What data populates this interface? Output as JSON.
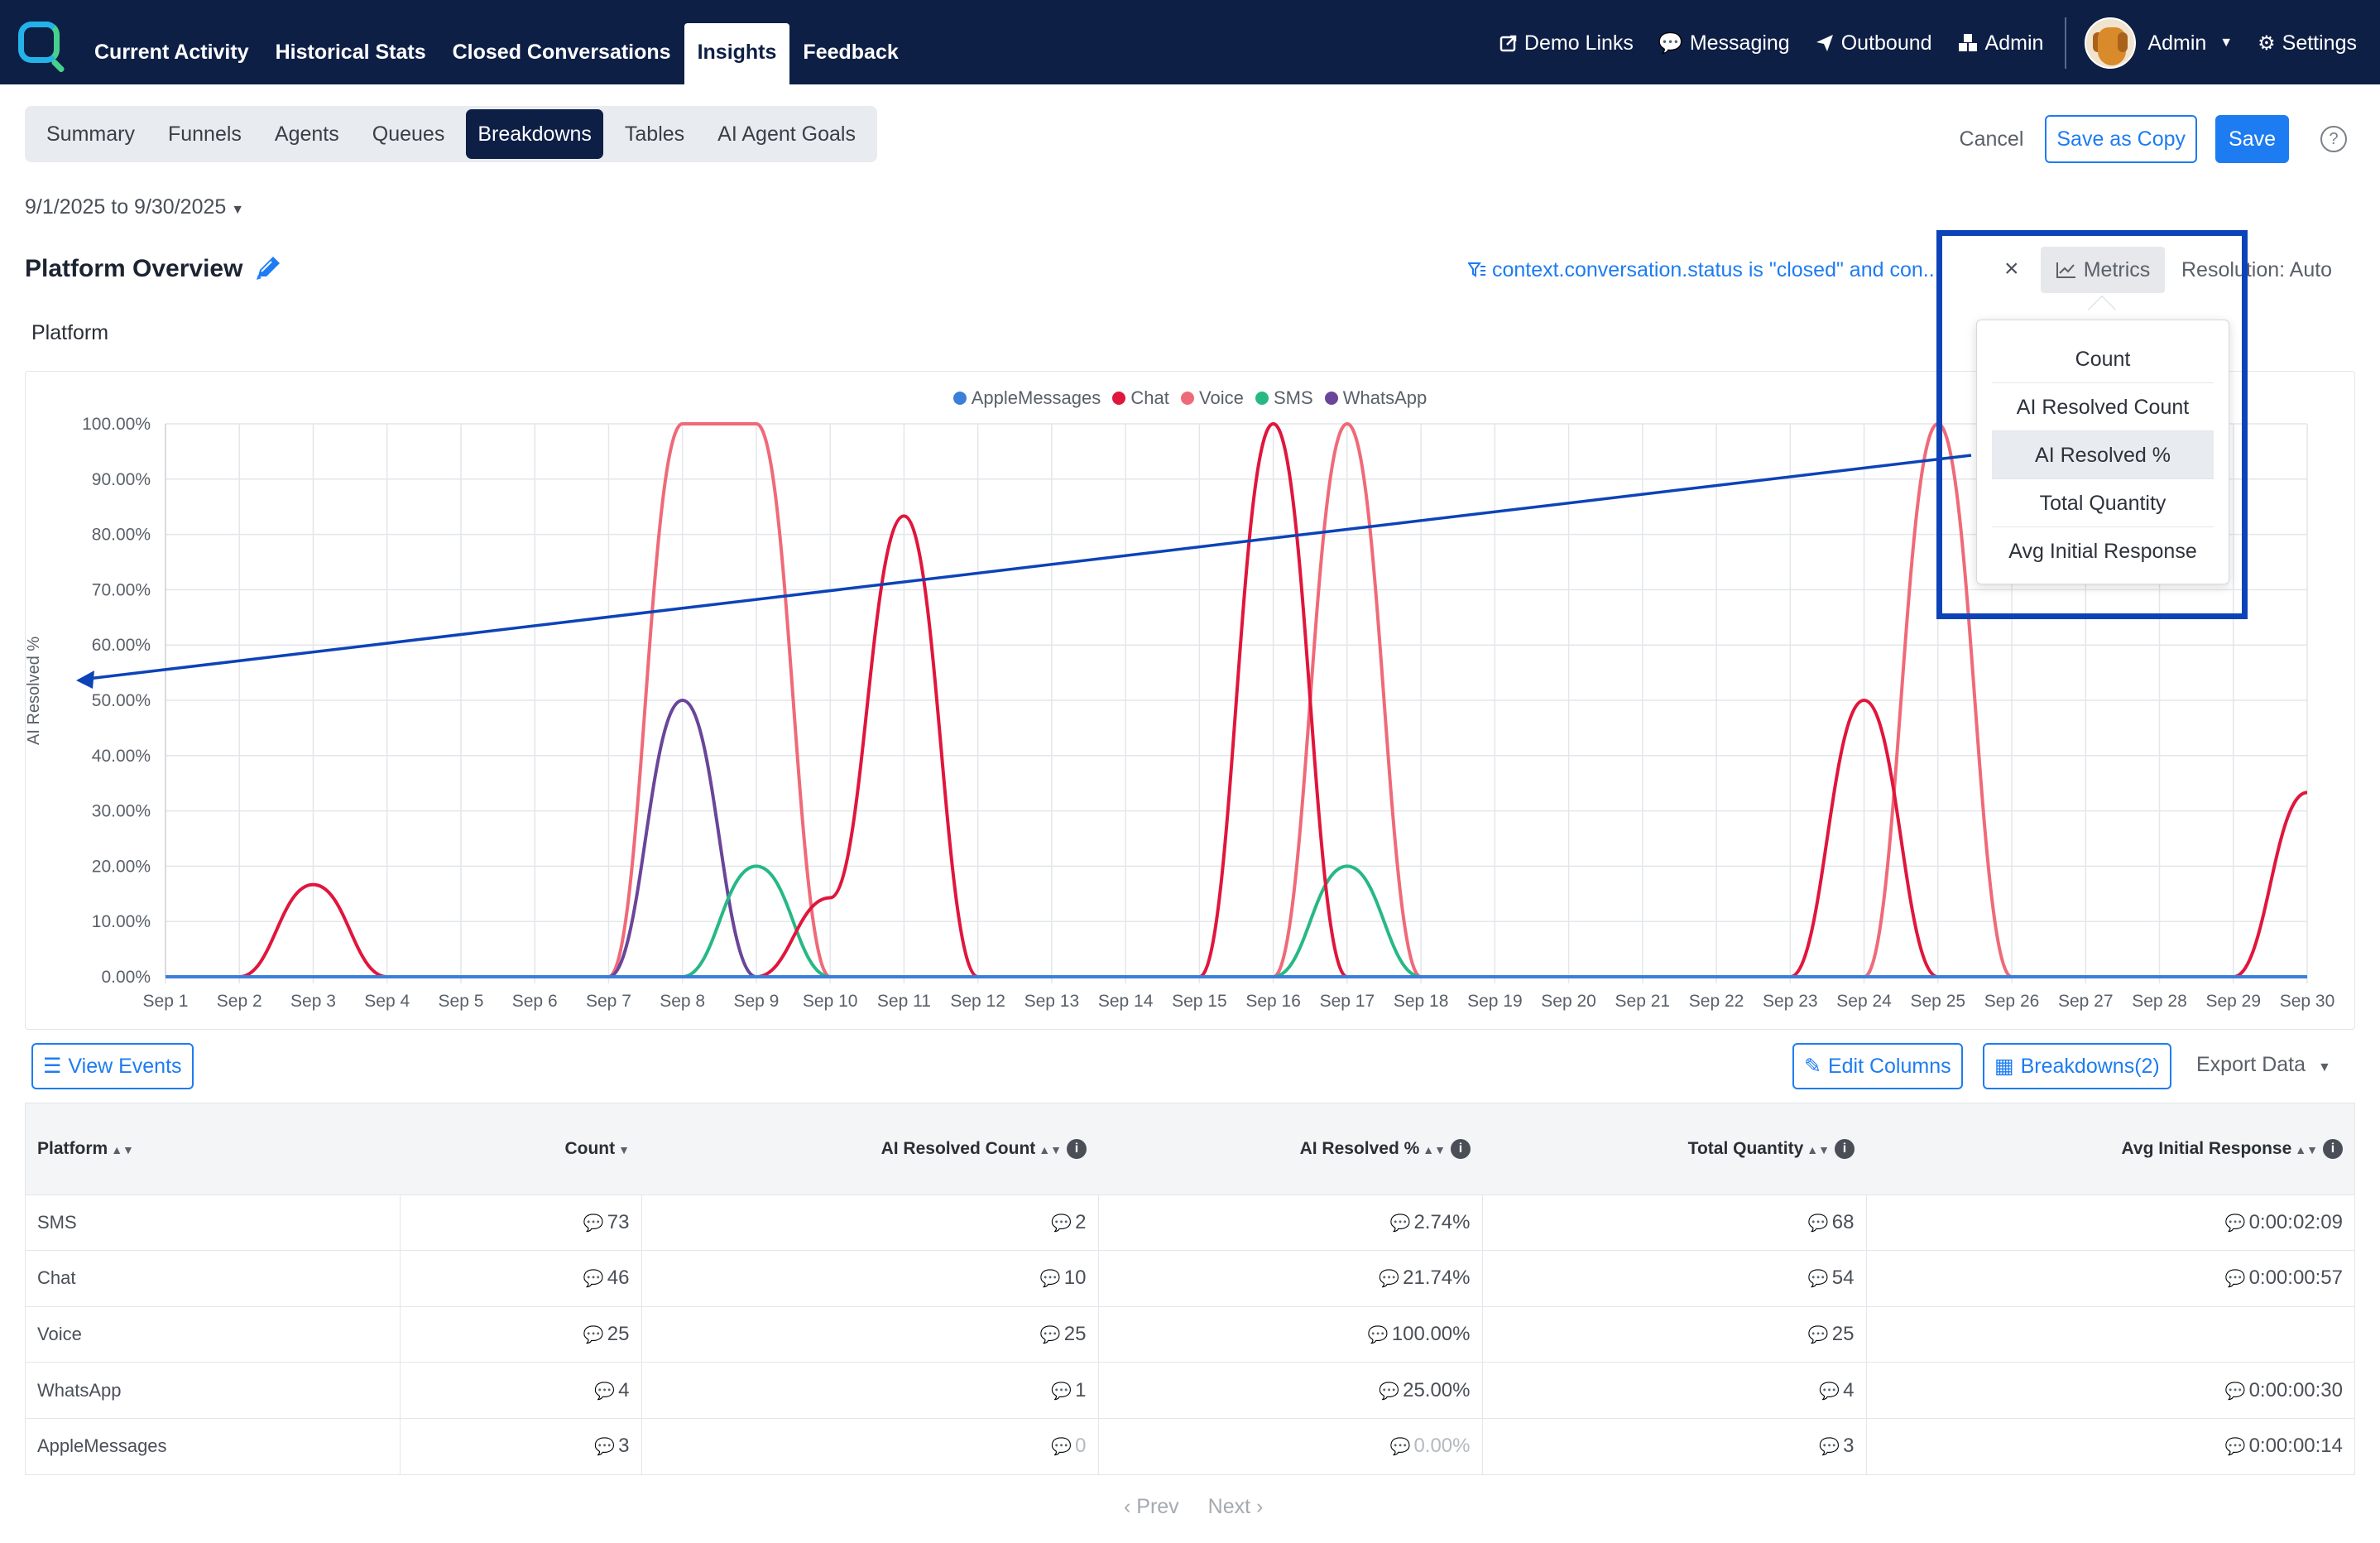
{
  "nav": {
    "tabs": [
      "Current Activity",
      "Historical Stats",
      "Closed Conversations",
      "Insights",
      "Feedback"
    ],
    "active_tab": "Insights",
    "right": {
      "demo_links": "Demo Links",
      "messaging": "Messaging",
      "outbound": "Outbound",
      "admin": "Admin",
      "user_label": "Admin",
      "settings": "Settings"
    }
  },
  "subtabs": [
    "Summary",
    "Funnels",
    "Agents",
    "Queues",
    "Breakdowns",
    "Tables",
    "AI Agent Goals"
  ],
  "active_subtab": "Breakdowns",
  "actions": {
    "cancel": "Cancel",
    "save_copy": "Save as Copy",
    "save": "Save",
    "help": "?"
  },
  "date_range": "9/1/2025 to 9/30/2025",
  "page_title": "Platform Overview",
  "filter_text": "context.conversation.status is \"closed\" and con...",
  "metrics_label": "Metrics",
  "resolution": "Resolution: Auto",
  "section_label": "Platform",
  "metrics_menu": {
    "items": [
      "Count",
      "AI Resolved Count",
      "AI Resolved %",
      "Total Quantity",
      "Avg Initial Response"
    ],
    "selected": "AI Resolved %"
  },
  "colors": {
    "navy": "#0e1f46",
    "blue": "#1d7cf2",
    "apple": "#3b7fd9",
    "chat": "#e0163c",
    "voice": "#ef6a78",
    "sms": "#27b884",
    "whatsapp": "#6a4599",
    "annotation": "#0c43b8"
  },
  "chart_data": {
    "type": "line",
    "ylabel": "AI Resolved %",
    "ylim": [
      0,
      100
    ],
    "yticks": [
      "0.00%",
      "10.00%",
      "20.00%",
      "30.00%",
      "40.00%",
      "50.00%",
      "60.00%",
      "70.00%",
      "80.00%",
      "90.00%",
      "100.00%"
    ],
    "categories": [
      "Sep 1",
      "Sep 2",
      "Sep 3",
      "Sep 4",
      "Sep 5",
      "Sep 6",
      "Sep 7",
      "Sep 8",
      "Sep 9",
      "Sep 10",
      "Sep 11",
      "Sep 12",
      "Sep 13",
      "Sep 14",
      "Sep 15",
      "Sep 16",
      "Sep 17",
      "Sep 18",
      "Sep 19",
      "Sep 20",
      "Sep 21",
      "Sep 22",
      "Sep 23",
      "Sep 24",
      "Sep 25",
      "Sep 26",
      "Sep 27",
      "Sep 28",
      "Sep 29",
      "Sep 30"
    ],
    "legend_position": "top",
    "grid": true,
    "series": [
      {
        "name": "AppleMessages",
        "color": "#3b7fd9",
        "values": [
          0,
          0,
          0,
          0,
          0,
          0,
          0,
          0,
          0,
          0,
          0,
          0,
          0,
          0,
          0,
          0,
          0,
          0,
          0,
          0,
          0,
          0,
          0,
          0,
          0,
          0,
          0,
          0,
          0,
          0
        ]
      },
      {
        "name": "Chat",
        "color": "#e0163c",
        "values": [
          0,
          0,
          16.67,
          0,
          0,
          0,
          0,
          0,
          0,
          14.29,
          83.33,
          0,
          0,
          0,
          0,
          100,
          0,
          0,
          0,
          0,
          0,
          0,
          0,
          50,
          0,
          0,
          0,
          0,
          0,
          33.33
        ]
      },
      {
        "name": "Voice",
        "color": "#ef6a78",
        "values": [
          0,
          0,
          0,
          0,
          0,
          0,
          0,
          100,
          100,
          0,
          0,
          0,
          0,
          0,
          0,
          0,
          100,
          0,
          0,
          0,
          0,
          0,
          0,
          0,
          100,
          0,
          0,
          0,
          0,
          0
        ]
      },
      {
        "name": "SMS",
        "color": "#27b884",
        "values": [
          0,
          0,
          0,
          0,
          0,
          0,
          0,
          0,
          20,
          0,
          0,
          0,
          0,
          0,
          0,
          0,
          20,
          0,
          0,
          0,
          0,
          0,
          0,
          0,
          0,
          0,
          0,
          0,
          0,
          0
        ]
      },
      {
        "name": "WhatsApp",
        "color": "#6a4599",
        "values": [
          0,
          0,
          0,
          0,
          0,
          0,
          0,
          50,
          0,
          0,
          0,
          0,
          0,
          0,
          0,
          0,
          0,
          0,
          0,
          0,
          0,
          0,
          0,
          0,
          0,
          0,
          0,
          0,
          0,
          0
        ]
      }
    ]
  },
  "toolbar": {
    "view_events": "View Events",
    "edit_columns": "Edit Columns",
    "breakdowns": "Breakdowns(2)",
    "export": "Export Data"
  },
  "table": {
    "headers": [
      "Platform",
      "Count",
      "AI Resolved Count",
      "AI Resolved %",
      "Total Quantity",
      "Avg Initial Response"
    ],
    "rows": [
      [
        "SMS",
        "73",
        "2",
        "2.74%",
        "68",
        "0:00:02:09"
      ],
      [
        "Chat",
        "46",
        "10",
        "21.74%",
        "54",
        "0:00:00:57"
      ],
      [
        "Voice",
        "25",
        "25",
        "100.00%",
        "25",
        ""
      ],
      [
        "WhatsApp",
        "4",
        "1",
        "25.00%",
        "4",
        "0:00:00:30"
      ],
      [
        "AppleMessages",
        "3",
        "0",
        "0.00%",
        "3",
        "0:00:00:14"
      ]
    ]
  },
  "pager": {
    "prev": "‹ Prev",
    "next": "Next ›"
  }
}
